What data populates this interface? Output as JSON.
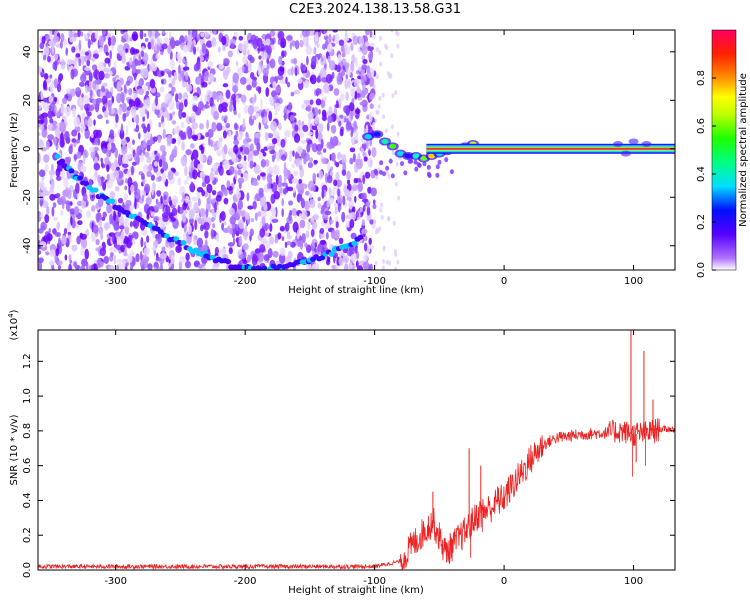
{
  "title": "C2E3.2024.138.13.58.G31",
  "colors": {
    "snr_line": "#ee2222",
    "frame": "#000000",
    "stable_line": "#ff2a2a",
    "stable_core": "#a0ff30"
  },
  "chart_data": [
    {
      "type": "heatmap",
      "xlabel": "Height of straight line (km)",
      "ylabel": "Frequency (Hz)",
      "xlim": [
        -360,
        132
      ],
      "ylim": [
        -50,
        49
      ],
      "xticks": [
        -300,
        -200,
        -100,
        0,
        100
      ],
      "yticks": [
        -40,
        -20,
        0,
        20,
        40
      ],
      "colorbar": {
        "label": "Normalized spectral amplitude",
        "range": [
          0,
          1
        ],
        "ticks": [
          "0.0",
          "0.2",
          "0.4",
          "0.6",
          "0.8"
        ]
      },
      "features": {
        "noise_region_x": [
          -360,
          -100
        ],
        "descending_arc_points": [
          [
            -345,
            -4
          ],
          [
            -330,
            -12
          ],
          [
            -310,
            -20
          ],
          [
            -290,
            -27
          ],
          [
            -270,
            -33
          ],
          [
            -250,
            -39
          ],
          [
            -230,
            -44
          ],
          [
            -210,
            -48
          ],
          [
            -190,
            -50
          ],
          [
            -170,
            -49
          ],
          [
            -150,
            -46
          ],
          [
            -130,
            -42
          ],
          [
            -110,
            -37
          ]
        ],
        "stable_line": {
          "x_start": -60,
          "x_end": 132,
          "frequency_hz": 0
        }
      }
    },
    {
      "type": "line",
      "xlabel": "Height of straight line (km)",
      "ylabel": "SNR (10 * v/v)",
      "yscale_label": "(x10",
      "yscale_exponent": "4",
      "yscale_suffix": ")",
      "xlim": [
        -360,
        132
      ],
      "ylim": [
        0,
        1.38
      ],
      "xticks": [
        -300,
        -200,
        -100,
        0,
        100
      ],
      "yticks": [
        "0.0",
        "0.2",
        "0.4",
        "0.6",
        "0.8",
        "1.0",
        "1.2"
      ],
      "series_envelope": {
        "x": [
          -360,
          -100,
          -80,
          -70,
          -55,
          -45,
          -30,
          -20,
          -10,
          0,
          10,
          20,
          30,
          40,
          60,
          80,
          90,
          100,
          110,
          120,
          132
        ],
        "y": [
          0.02,
          0.02,
          0.05,
          0.15,
          0.28,
          0.1,
          0.22,
          0.32,
          0.36,
          0.42,
          0.52,
          0.63,
          0.72,
          0.76,
          0.78,
          0.79,
          0.8,
          0.78,
          0.79,
          0.81,
          0.81
        ]
      },
      "spikes": [
        [
          -55,
          0.45
        ],
        [
          -27,
          0.7
        ],
        [
          -18,
          0.6
        ],
        [
          -5,
          0.48
        ],
        [
          98,
          1.4
        ],
        [
          102,
          0.62
        ],
        [
          108,
          1.26
        ],
        [
          115,
          0.98
        ]
      ]
    }
  ]
}
